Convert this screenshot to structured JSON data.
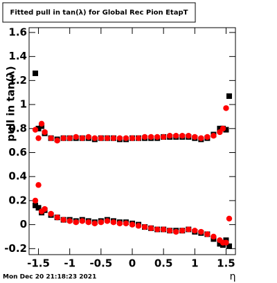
{
  "chart_data": {
    "type": "scatter",
    "title": "Fitted pull in tan(λ) for Global Rec Pion EtapT",
    "y_label": "pull in tan(λ)",
    "x_label": "η",
    "footer": "Mon Dec 20 21:18:23 2021",
    "x": [
      -1.55,
      -1.5,
      -1.45,
      -1.4,
      -1.3,
      -1.2,
      -1.1,
      -1.0,
      -0.9,
      -0.8,
      -0.7,
      -0.6,
      -0.5,
      -0.4,
      -0.3,
      -0.2,
      -0.1,
      0,
      0.1,
      0.2,
      0.3,
      0.4,
      0.5,
      0.6,
      0.7,
      0.8,
      0.9,
      1.0,
      1.1,
      1.2,
      1.3,
      1.4,
      1.45,
      1.5,
      1.55
    ],
    "series": [
      {
        "color": "#000000",
        "values": [
          1.26,
          0.8,
          0.82,
          0.76,
          0.72,
          0.71,
          0.72,
          0.72,
          0.72,
          0.72,
          0.72,
          0.71,
          0.72,
          0.72,
          0.72,
          0.71,
          0.71,
          0.72,
          0.72,
          0.72,
          0.72,
          0.72,
          0.73,
          0.73,
          0.73,
          0.73,
          0.73,
          0.72,
          0.71,
          0.72,
          0.75,
          0.8,
          0.8,
          0.79,
          1.07
        ]
      },
      {
        "color": "#ff0000",
        "values": [
          0.79,
          0.72,
          0.84,
          0.77,
          0.72,
          0.7,
          0.72,
          0.72,
          0.73,
          0.72,
          0.73,
          0.72,
          0.72,
          0.72,
          0.72,
          0.72,
          0.72,
          0.72,
          0.72,
          0.73,
          0.73,
          0.73,
          0.73,
          0.74,
          0.74,
          0.74,
          0.74,
          0.73,
          0.72,
          0.73,
          0.74,
          0.77,
          0.8,
          0.97,
          null
        ]
      },
      {
        "color": "#000000",
        "values": [
          0.16,
          0.14,
          0.1,
          0.12,
          0.08,
          0.06,
          0.04,
          0.04,
          0.03,
          0.04,
          0.03,
          0.02,
          0.03,
          0.04,
          0.03,
          0.02,
          0.02,
          0.01,
          0.0,
          -0.02,
          -0.03,
          -0.04,
          -0.04,
          -0.05,
          -0.05,
          -0.05,
          -0.04,
          -0.06,
          -0.07,
          -0.08,
          -0.12,
          -0.16,
          -0.17,
          -0.13,
          -0.18
        ]
      },
      {
        "color": "#ff0000",
        "values": [
          0.2,
          0.33,
          0.11,
          0.13,
          0.09,
          0.06,
          0.04,
          0.03,
          0.02,
          0.03,
          0.02,
          0.01,
          0.02,
          0.03,
          0.02,
          0.01,
          0.01,
          0.0,
          -0.01,
          -0.02,
          -0.03,
          -0.04,
          -0.04,
          -0.05,
          -0.06,
          -0.05,
          -0.04,
          -0.05,
          -0.06,
          -0.08,
          -0.1,
          -0.13,
          -0.15,
          -0.15,
          0.05
        ]
      }
    ],
    "xlim": [
      -1.65,
      1.65
    ],
    "xticks": [
      -1.5,
      -1,
      -0.5,
      0,
      0.5,
      1,
      1.5
    ],
    "ylim": [
      -0.25,
      1.64
    ],
    "yticks": [
      -0.2,
      0,
      0.2,
      0.4,
      0.6,
      0.8,
      1,
      1.2,
      1.4,
      1.6
    ]
  }
}
